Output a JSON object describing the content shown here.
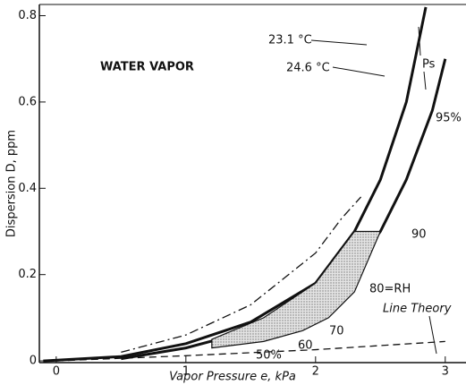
{
  "chart_data": {
    "type": "line",
    "xlabel": "Vapor Pressure  e, kPa",
    "ylabel": "Dispersion D, ppm",
    "xlim": [
      -0.13,
      3.16
    ],
    "xticks": [
      0,
      1,
      2,
      3
    ],
    "ylim": [
      -0.004,
      0.826
    ],
    "yticks": [
      0,
      0.2,
      0.4,
      0.6,
      0.8
    ],
    "series": [
      {
        "name": "23.1 °C",
        "color": "#111111",
        "style": "solid",
        "width": 3,
        "x": [
          -0.1,
          0.5,
          1,
          1.5,
          2,
          2.3,
          2.5,
          2.7,
          2.85
        ],
        "values": [
          0,
          0.01,
          0.04,
          0.09,
          0.18,
          0.3,
          0.42,
          0.6,
          0.82
        ]
      },
      {
        "name": "24.6 °C",
        "color": "#111111",
        "style": "solid",
        "width": 3,
        "x": [
          0.5,
          1,
          1.5,
          2,
          2.3,
          2.5,
          2.7,
          2.9,
          3
        ],
        "values": [
          0.005,
          0.03,
          0.07,
          0.14,
          0.22,
          0.3,
          0.42,
          0.58,
          0.7
        ]
      },
      {
        "color": "#111111",
        "style": "dashdot",
        "width": 1.3,
        "x": [
          0.5,
          1,
          1.5,
          2,
          2.2,
          2.35
        ],
        "values": [
          0.02,
          0.06,
          0.13,
          0.25,
          0.33,
          0.38
        ]
      },
      {
        "name": "Line Theory",
        "color": "#111111",
        "style": "dashed",
        "width": 1.3,
        "x": [
          0,
          1,
          2,
          3
        ],
        "values": [
          0,
          0.012,
          0.026,
          0.045
        ]
      },
      {
        "color": "#111111",
        "style": "region",
        "width": 1.2,
        "x": [
          1.2,
          1.6,
          1.9,
          2.1,
          2.3,
          2.5,
          2.3,
          2.0,
          1.6,
          1.2
        ],
        "values": [
          0.03,
          0.045,
          0.07,
          0.1,
          0.16,
          0.3,
          0.3,
          0.18,
          0.1,
          0.05
        ]
      }
    ],
    "annotations": [
      "WATER VAPOR",
      "23.1 °C",
      "24.6 °C",
      "Ps",
      "95%",
      "90",
      "80=RH",
      "70",
      "60",
      "50%",
      "Line Theory"
    ]
  }
}
